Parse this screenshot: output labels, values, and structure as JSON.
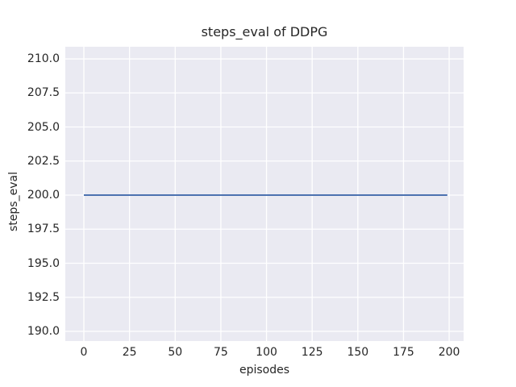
{
  "chart_data": {
    "type": "line",
    "title": "steps_eval of DDPG",
    "xlabel": "episodes",
    "ylabel": "steps_eval",
    "xlim": [
      -10.15,
      207.9
    ],
    "ylim": [
      189.29,
      210.89
    ],
    "xticks": [
      0,
      25,
      50,
      75,
      100,
      125,
      150,
      175,
      200
    ],
    "xtick_labels": [
      "0",
      "25",
      "50",
      "75",
      "100",
      "125",
      "150",
      "175",
      "200"
    ],
    "yticks": [
      190.0,
      192.5,
      195.0,
      197.5,
      200.0,
      202.5,
      205.0,
      207.5,
      210.0
    ],
    "ytick_labels": [
      "190.0",
      "192.5",
      "195.0",
      "197.5",
      "200.0",
      "202.5",
      "205.0",
      "207.5",
      "210.0"
    ],
    "grid": true,
    "legend_position": "none",
    "series": [
      {
        "name": "DDPG",
        "x": [
          0,
          199
        ],
        "y": [
          200,
          200
        ]
      }
    ],
    "colors": {
      "figure_bg": "#ffffff",
      "plot_bg": "#eaeaf2",
      "grid": "#ffffff",
      "line": "#4c72b0",
      "text": "#262626"
    }
  }
}
